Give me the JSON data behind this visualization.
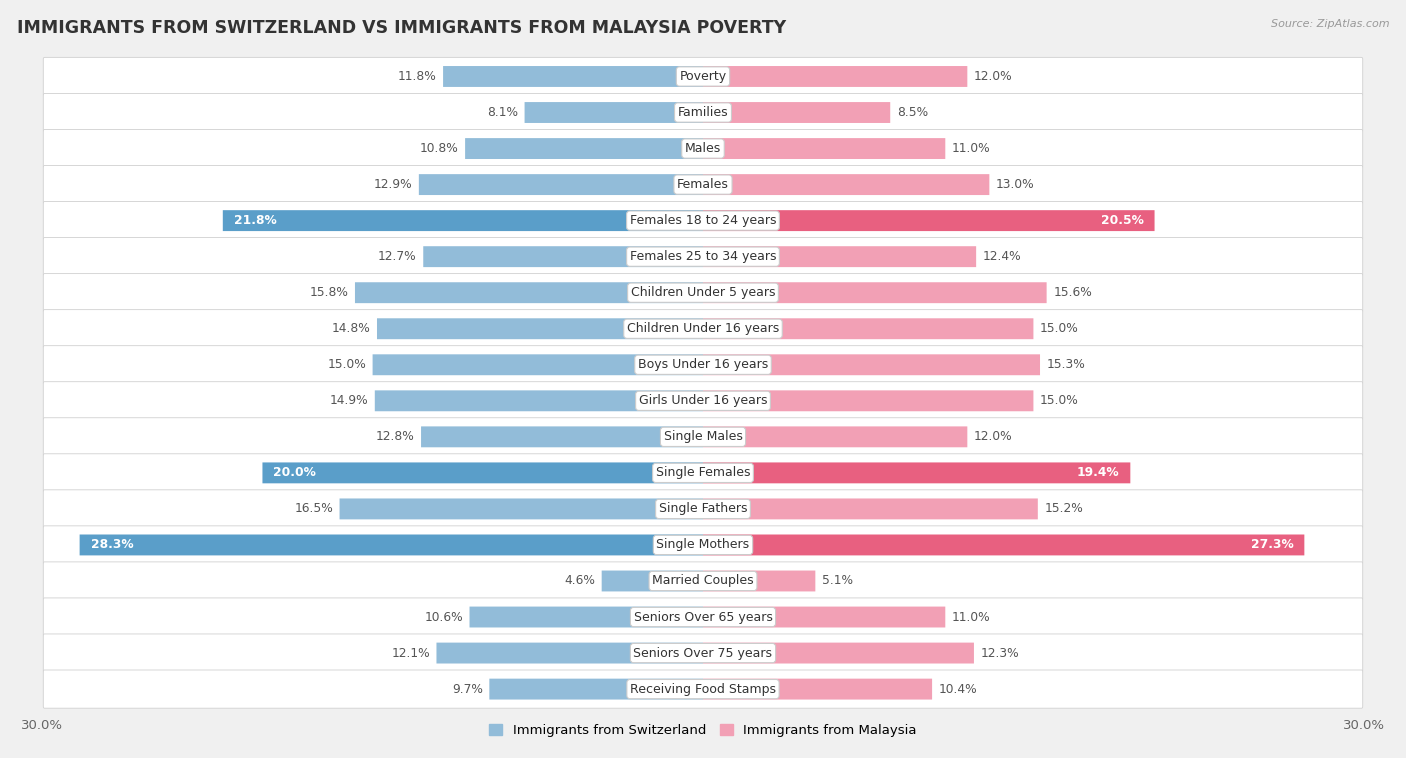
{
  "title": "IMMIGRANTS FROM SWITZERLAND VS IMMIGRANTS FROM MALAYSIA POVERTY",
  "source": "Source: ZipAtlas.com",
  "categories": [
    "Poverty",
    "Families",
    "Males",
    "Females",
    "Females 18 to 24 years",
    "Females 25 to 34 years",
    "Children Under 5 years",
    "Children Under 16 years",
    "Boys Under 16 years",
    "Girls Under 16 years",
    "Single Males",
    "Single Females",
    "Single Fathers",
    "Single Mothers",
    "Married Couples",
    "Seniors Over 65 years",
    "Seniors Over 75 years",
    "Receiving Food Stamps"
  ],
  "switzerland_values": [
    11.8,
    8.1,
    10.8,
    12.9,
    21.8,
    12.7,
    15.8,
    14.8,
    15.0,
    14.9,
    12.8,
    20.0,
    16.5,
    28.3,
    4.6,
    10.6,
    12.1,
    9.7
  ],
  "malaysia_values": [
    12.0,
    8.5,
    11.0,
    13.0,
    20.5,
    12.4,
    15.6,
    15.0,
    15.3,
    15.0,
    12.0,
    19.4,
    15.2,
    27.3,
    5.1,
    11.0,
    12.3,
    10.4
  ],
  "switzerland_color": "#92bcd9",
  "malaysia_color": "#f2a0b5",
  "switzerland_highlight_color": "#5a9ec9",
  "malaysia_highlight_color": "#e86080",
  "highlight_threshold": 18.0,
  "bar_height": 0.58,
  "xlim": 30.0,
  "background_color": "#f0f0f0",
  "row_bg_color": "#ffffff",
  "label_fontsize": 9.0,
  "value_fontsize": 8.8,
  "title_fontsize": 12.5,
  "legend_labels": [
    "Immigrants from Switzerland",
    "Immigrants from Malaysia"
  ]
}
